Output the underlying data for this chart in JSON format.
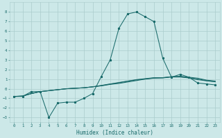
{
  "xlabel": "Humidex (Indice chaleur)",
  "xlim": [
    -0.5,
    23.5
  ],
  "ylim": [
    -3.5,
    9.0
  ],
  "xticks": [
    0,
    1,
    2,
    3,
    4,
    5,
    6,
    7,
    8,
    9,
    10,
    11,
    12,
    13,
    14,
    15,
    16,
    17,
    18,
    19,
    20,
    21,
    22,
    23
  ],
  "yticks": [
    -3,
    -2,
    -1,
    0,
    1,
    2,
    3,
    4,
    5,
    6,
    7,
    8
  ],
  "background_color": "#cce8e8",
  "grid_color": "#aacccc",
  "line_color": "#1a6b6b",
  "line1_x": [
    0,
    1,
    2,
    3,
    4,
    5,
    6,
    7,
    8,
    9,
    10,
    11,
    12,
    13,
    14,
    15,
    16,
    17,
    18,
    19,
    20,
    21,
    22,
    23
  ],
  "line1_y": [
    -0.8,
    -0.8,
    -0.3,
    -0.3,
    -3.0,
    -1.5,
    -1.4,
    -1.4,
    -1.0,
    -0.5,
    1.3,
    3.0,
    6.3,
    7.8,
    8.0,
    7.5,
    7.0,
    3.2,
    1.2,
    1.5,
    1.2,
    0.6,
    0.5,
    0.4
  ],
  "line2_x": [
    0,
    1,
    2,
    3,
    4,
    5,
    6,
    7,
    8,
    9,
    10,
    11,
    12,
    13,
    14,
    15,
    16,
    17,
    18,
    19,
    20,
    21,
    22,
    23
  ],
  "line2_y": [
    -0.8,
    -0.75,
    -0.5,
    -0.3,
    -0.2,
    -0.1,
    0.0,
    0.05,
    0.1,
    0.2,
    0.3,
    0.45,
    0.55,
    0.7,
    0.85,
    1.0,
    1.1,
    1.15,
    1.25,
    1.3,
    1.2,
    1.1,
    0.9,
    0.8
  ],
  "line3_x": [
    0,
    1,
    2,
    3,
    4,
    5,
    6,
    7,
    8,
    9,
    10,
    11,
    12,
    13,
    14,
    15,
    16,
    17,
    18,
    19,
    20,
    21,
    22,
    23
  ],
  "line3_y": [
    -0.8,
    -0.78,
    -0.5,
    -0.3,
    -0.2,
    -0.1,
    0.0,
    0.05,
    0.1,
    0.2,
    0.35,
    0.5,
    0.65,
    0.8,
    0.95,
    1.05,
    1.15,
    1.15,
    1.25,
    1.25,
    1.15,
    1.0,
    0.85,
    0.75
  ],
  "line4_x": [
    0,
    1,
    2,
    3,
    4,
    5,
    6,
    7,
    8,
    9,
    10,
    11,
    12,
    13,
    14,
    15,
    16,
    17,
    18,
    19,
    20,
    21,
    22,
    23
  ],
  "line4_y": [
    -0.8,
    -0.76,
    -0.5,
    -0.3,
    -0.2,
    -0.1,
    0.0,
    0.05,
    0.1,
    0.2,
    0.32,
    0.48,
    0.62,
    0.78,
    0.92,
    1.02,
    1.12,
    1.12,
    1.22,
    1.22,
    1.12,
    0.95,
    0.82,
    0.72
  ]
}
